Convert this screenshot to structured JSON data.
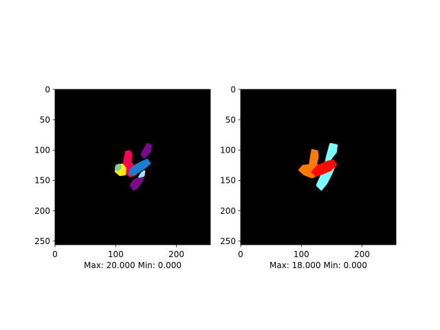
{
  "chart_data": [
    {
      "type": "heatmap",
      "subtitle": "Max: 20.000 Min: 0.000",
      "background_color": "#000000",
      "x_ticks": [
        0,
        100,
        200
      ],
      "y_ticks": [
        0,
        50,
        100,
        150,
        200,
        250
      ],
      "xlim": [
        0,
        256
      ],
      "ylim": [
        256,
        0
      ],
      "regions": [
        {
          "color": "#7a0a8a",
          "points": [
            [
              152,
              90
            ],
            [
              158,
              93
            ],
            [
              156,
              103
            ],
            [
              147,
              112
            ],
            [
              143,
              107
            ]
          ]
        },
        {
          "color": "#7a0a8a",
          "points": [
            [
              140,
              145
            ],
            [
              145,
              140
            ],
            [
              144,
              150
            ],
            [
              135,
              162
            ],
            [
              130,
              165
            ],
            [
              125,
              158
            ],
            [
              130,
              150
            ]
          ]
        },
        {
          "color": "#ff0050",
          "points": [
            [
              117,
              103
            ],
            [
              123,
              102
            ],
            [
              126,
              108
            ],
            [
              124,
              120
            ],
            [
              132,
              130
            ],
            [
              133,
              140
            ],
            [
              124,
              143
            ],
            [
              114,
              135
            ],
            [
              114,
              120
            ]
          ]
        },
        {
          "color": "#ffee00",
          "points": [
            [
              103,
              125
            ],
            [
              111,
              124
            ],
            [
              116,
              130
            ],
            [
              115,
              140
            ],
            [
              107,
              141
            ],
            [
              100,
              135
            ]
          ]
        },
        {
          "color": "#1a7fd0",
          "points": [
            [
              125,
              132
            ],
            [
              133,
              125
            ],
            [
              143,
              120
            ],
            [
              152,
              116
            ],
            [
              156,
              122
            ],
            [
              149,
              128
            ],
            [
              139,
              135
            ],
            [
              130,
              140
            ],
            [
              123,
              139
            ]
          ]
        },
        {
          "color": "#a0e8ff",
          "points": [
            [
              143,
              138
            ],
            [
              147,
              135
            ],
            [
              146,
              142
            ],
            [
              139,
              144
            ]
          ]
        },
        {
          "color": "#7ad0a0",
          "points": [
            [
              101,
              126
            ],
            [
              106,
              124
            ],
            [
              108,
              129
            ],
            [
              104,
              133
            ],
            [
              100,
              131
            ]
          ]
        }
      ]
    },
    {
      "type": "heatmap",
      "subtitle": "Max: 18.000 Min: 0.000",
      "background_color": "#000000",
      "x_ticks": [
        0,
        100,
        200
      ],
      "y_ticks": [
        0,
        50,
        100,
        150,
        200,
        250
      ],
      "xlim": [
        0,
        256
      ],
      "ylim": [
        256,
        0
      ],
      "regions": [
        {
          "color": "#7affff",
          "points": [
            [
              148,
              90
            ],
            [
              158,
              92
            ],
            [
              157,
              103
            ],
            [
              150,
              112
            ],
            [
              143,
              122
            ],
            [
              155,
              125
            ],
            [
              149,
              140
            ],
            [
              141,
              155
            ],
            [
              133,
              165
            ],
            [
              126,
              158
            ],
            [
              131,
              147
            ],
            [
              138,
              130
            ],
            [
              142,
              112
            ]
          ]
        },
        {
          "color": "#ff7a00",
          "points": [
            [
              118,
              100
            ],
            [
              126,
              102
            ],
            [
              127,
              112
            ],
            [
              124,
              123
            ],
            [
              130,
              128
            ],
            [
              127,
              140
            ],
            [
              118,
              145
            ],
            [
              105,
              140
            ],
            [
              97,
              133
            ],
            [
              103,
              126
            ],
            [
              114,
              125
            ],
            [
              116,
              112
            ]
          ]
        },
        {
          "color": "#ff0a00",
          "points": [
            [
              118,
              136
            ],
            [
              126,
              127
            ],
            [
              141,
              120
            ],
            [
              152,
              117
            ],
            [
              157,
              124
            ],
            [
              148,
              133
            ],
            [
              134,
              139
            ],
            [
              124,
              142
            ]
          ]
        }
      ]
    }
  ]
}
